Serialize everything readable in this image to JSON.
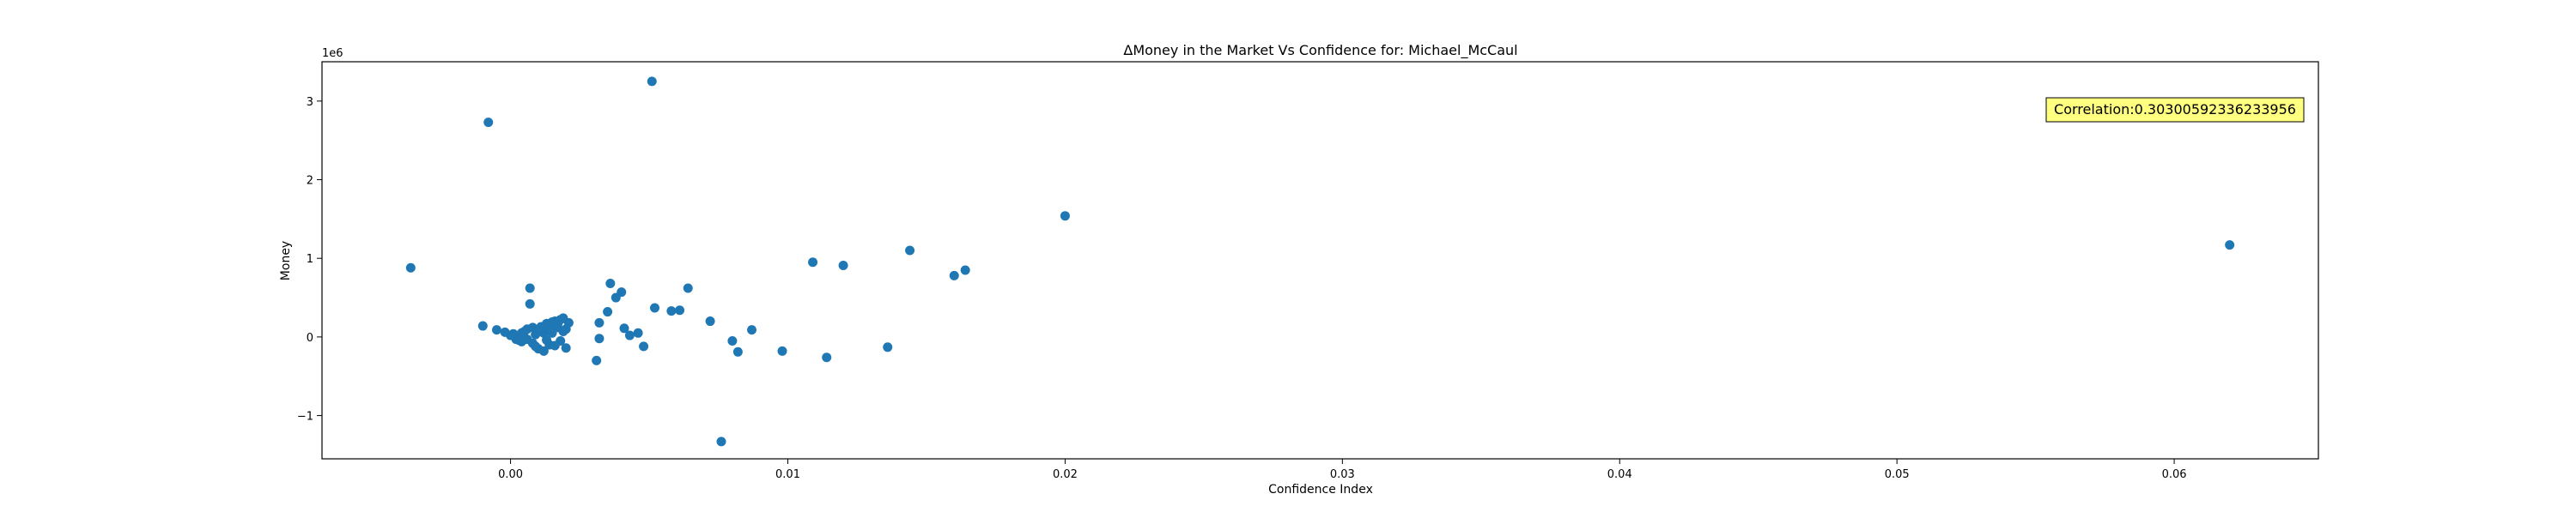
{
  "chart_data": {
    "type": "scatter",
    "title": "ΔMoney in the Market Vs Confidence for: Michael_McCaul",
    "xlabel": "Confidence Index",
    "ylabel": "Money",
    "y_offset_label": "1e6",
    "xlim": [
      -0.0068,
      0.0652
    ],
    "ylim": [
      -1.55,
      3.5
    ],
    "x_ticks": [
      0.0,
      0.01,
      0.02,
      0.03,
      0.04,
      0.05,
      0.06
    ],
    "x_tick_labels": [
      "0.00",
      "0.01",
      "0.02",
      "0.03",
      "0.04",
      "0.05",
      "0.06"
    ],
    "y_ticks": [
      -1,
      0,
      1,
      2,
      3
    ],
    "y_tick_labels": [
      "−1",
      "0",
      "1",
      "2",
      "3"
    ],
    "grid": false,
    "marker_color": "#1f77b4",
    "annotation": {
      "text": "Correlation:0.30300592336233956",
      "background": "#ffff80"
    },
    "points": [
      {
        "x": -0.0036,
        "y": 0.88
      },
      {
        "x": -0.0008,
        "y": 2.73
      },
      {
        "x": 0.0051,
        "y": 3.25
      },
      {
        "x": 0.062,
        "y": 1.17
      },
      {
        "x": 0.02,
        "y": 1.54
      },
      {
        "x": 0.0144,
        "y": 1.1
      },
      {
        "x": 0.0164,
        "y": 0.85
      },
      {
        "x": 0.016,
        "y": 0.78
      },
      {
        "x": 0.0109,
        "y": 0.95
      },
      {
        "x": 0.012,
        "y": 0.91
      },
      {
        "x": 0.0076,
        "y": -1.33
      },
      {
        "x": 0.0136,
        "y": -0.13
      },
      {
        "x": 0.0114,
        "y": -0.26
      },
      {
        "x": 0.0098,
        "y": -0.18
      },
      {
        "x": 0.0087,
        "y": 0.09
      },
      {
        "x": 0.0082,
        "y": -0.19
      },
      {
        "x": 0.008,
        "y": -0.05
      },
      {
        "x": 0.0072,
        "y": 0.2
      },
      {
        "x": 0.0064,
        "y": 0.62
      },
      {
        "x": 0.0061,
        "y": 0.34
      },
      {
        "x": 0.0058,
        "y": 0.33
      },
      {
        "x": 0.0052,
        "y": 0.37
      },
      {
        "x": 0.0048,
        "y": -0.12
      },
      {
        "x": 0.0046,
        "y": 0.05
      },
      {
        "x": 0.0043,
        "y": 0.02
      },
      {
        "x": 0.0041,
        "y": 0.11
      },
      {
        "x": 0.004,
        "y": 0.57
      },
      {
        "x": 0.0038,
        "y": 0.5
      },
      {
        "x": 0.0036,
        "y": 0.68
      },
      {
        "x": 0.0035,
        "y": 0.32
      },
      {
        "x": 0.0032,
        "y": 0.18
      },
      {
        "x": 0.0032,
        "y": -0.02
      },
      {
        "x": 0.0031,
        "y": -0.3
      },
      {
        "x": 0.0021,
        "y": 0.18
      },
      {
        "x": 0.002,
        "y": -0.14
      },
      {
        "x": 0.0019,
        "y": 0.24
      },
      {
        "x": 0.0018,
        "y": -0.05
      },
      {
        "x": 0.0017,
        "y": 0.12
      },
      {
        "x": 0.0016,
        "y": 0.2
      },
      {
        "x": 0.0015,
        "y": 0.05
      },
      {
        "x": 0.0014,
        "y": -0.1
      },
      {
        "x": 0.0013,
        "y": 0.17
      },
      {
        "x": 0.0012,
        "y": -0.18
      },
      {
        "x": 0.0011,
        "y": 0.1
      },
      {
        "x": 0.001,
        "y": -0.15
      },
      {
        "x": 0.0009,
        "y": 0.03
      },
      {
        "x": 0.0008,
        "y": 0.12
      },
      {
        "x": 0.0007,
        "y": 0.62
      },
      {
        "x": 0.0007,
        "y": 0.42
      },
      {
        "x": 0.0006,
        "y": -0.03
      },
      {
        "x": 0.0005,
        "y": 0.07
      },
      {
        "x": 0.0004,
        "y": -0.06
      },
      {
        "x": 0.0003,
        "y": 0.02
      },
      {
        "x": 0.0002,
        "y": -0.03
      },
      {
        "x": 0.0001,
        "y": 0.04
      },
      {
        "x": 0.0,
        "y": 0.02
      },
      {
        "x": -0.0002,
        "y": 0.06
      },
      {
        "x": -0.0005,
        "y": 0.09
      },
      {
        "x": -0.001,
        "y": 0.14
      },
      {
        "x": 0.0012,
        "y": 0.05
      },
      {
        "x": 0.0014,
        "y": 0.09
      },
      {
        "x": 0.0017,
        "y": 0.16
      },
      {
        "x": 0.0019,
        "y": 0.07
      },
      {
        "x": 0.0008,
        "y": -0.08
      },
      {
        "x": 0.001,
        "y": 0.08
      },
      {
        "x": 0.0013,
        "y": -0.04
      },
      {
        "x": 0.0016,
        "y": -0.11
      },
      {
        "x": 0.0004,
        "y": 0.05
      },
      {
        "x": 0.0006,
        "y": 0.1
      },
      {
        "x": 0.0009,
        "y": -0.12
      },
      {
        "x": 0.0015,
        "y": 0.19
      },
      {
        "x": 0.0018,
        "y": 0.22
      },
      {
        "x": 0.0003,
        "y": -0.04
      },
      {
        "x": 0.0011,
        "y": 0.13
      },
      {
        "x": 0.002,
        "y": 0.1
      }
    ]
  }
}
